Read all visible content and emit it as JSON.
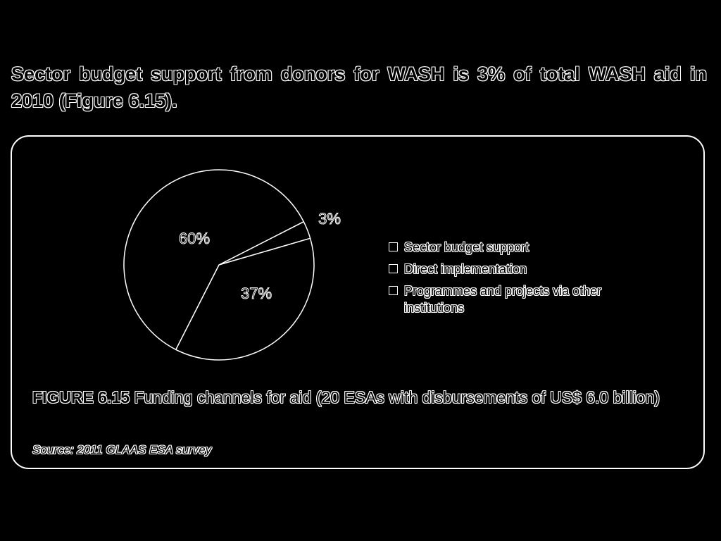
{
  "headline": "Sector budget support from donors for WASH is 3% of total WASH aid in 2010 (Figure 6.15).",
  "figure": {
    "label": "FIGURE 6.15",
    "title": "Funding channels for aid (20 ESAs with disbursements of US$ 6.0 billion)",
    "source": "Source: 2011 GLAAS ESA survey"
  },
  "chart_data": {
    "type": "pie",
    "categories": [
      "Sector budget support",
      "Direct implementation",
      "Programmes and projects via other institutions"
    ],
    "values": [
      3,
      37,
      60
    ],
    "labels": [
      "3%",
      "37%",
      "60%"
    ],
    "legend_position": "right",
    "colors": [
      "#000000",
      "#000000",
      "#000000"
    ],
    "stroke": "#ffffff"
  }
}
